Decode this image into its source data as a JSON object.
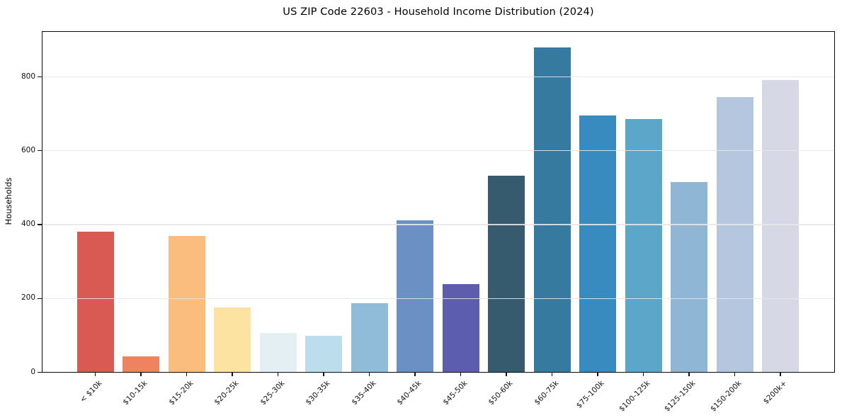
{
  "chart_data": {
    "type": "bar",
    "title": "US ZIP Code 22603 - Household Income Distribution (2024)",
    "xlabel": "",
    "ylabel": "Households",
    "categories": [
      "< $10k",
      "$10-15k",
      "$15-20k",
      "$20-25k",
      "$25-30k",
      "$30-35k",
      "$35-40k",
      "$40-45k",
      "$45-50k",
      "$50-60k",
      "$60-75k",
      "$75-100k",
      "$100-125k",
      "$125-150k",
      "$150-200k",
      "$200k+"
    ],
    "values": [
      380,
      44,
      370,
      175,
      107,
      98,
      188,
      412,
      239,
      533,
      879,
      695,
      686,
      516,
      746,
      791
    ],
    "bar_colors": [
      "#D85A52",
      "#F0835F",
      "#FBBD7D",
      "#FDE3A1",
      "#E4EFF3",
      "#BBDDEC",
      "#90BCD9",
      "#6B90C3",
      "#5C5DAC",
      "#365B6E",
      "#377AA0",
      "#378BBE",
      "#5CA6C9",
      "#8FB6D4",
      "#B5C7DE",
      "#D6D8E6"
    ],
    "yticks": [
      0,
      200,
      400,
      600,
      800
    ],
    "ylim": [
      0,
      923
    ],
    "grid": "horizontal-over-bars",
    "legend": "none",
    "background": "#ffffff",
    "axis_color": "#000000",
    "gridline_color": "#e7e7e7"
  }
}
